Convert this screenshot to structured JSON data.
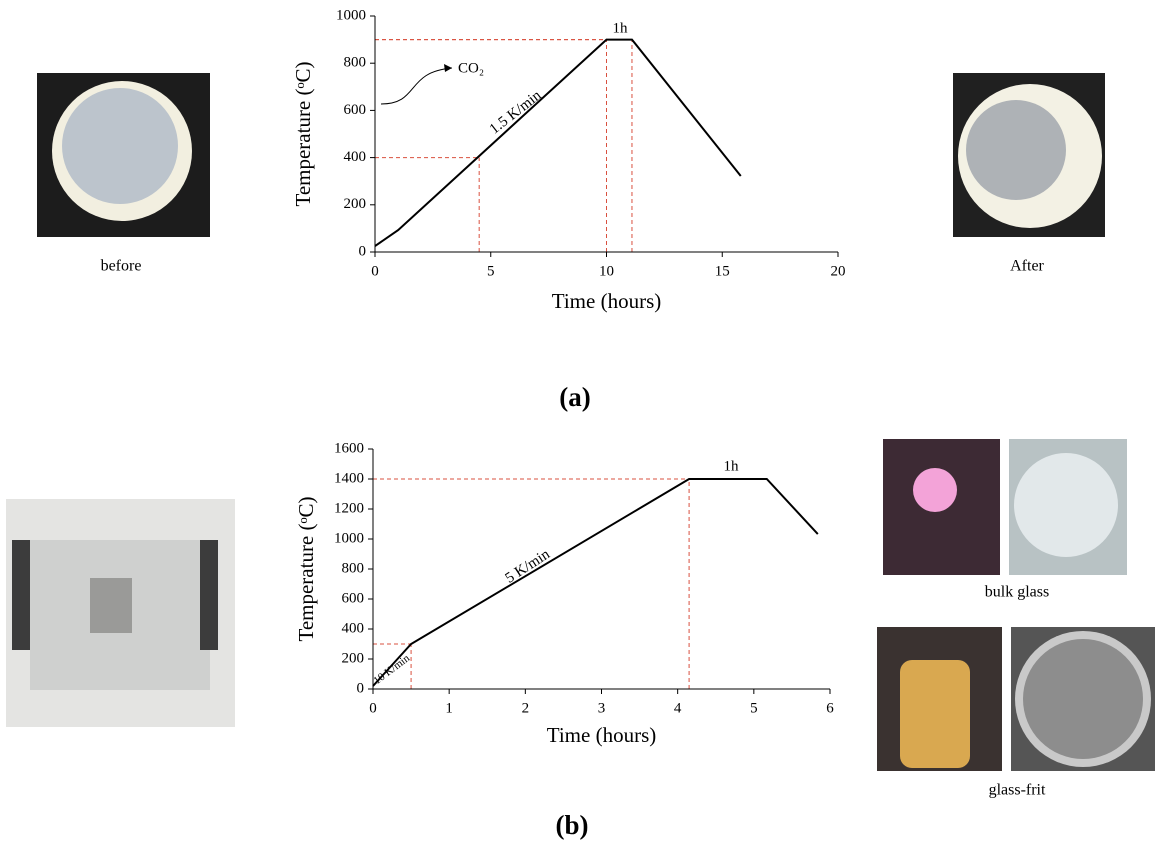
{
  "chart_data": [
    {
      "type": "line",
      "panel_label": "(a)",
      "xlabel": "Time (hours)",
      "ylabel": "Temperature (ᵒC)",
      "xlim": [
        0,
        20
      ],
      "xticks": [
        0,
        5,
        10,
        15,
        20
      ],
      "ylim": [
        0,
        1000
      ],
      "yticks": [
        0,
        200,
        400,
        600,
        800,
        1000
      ],
      "grid": false,
      "series": [
        {
          "color": "#000000",
          "x": [
            0,
            1,
            10,
            11.1,
            15.8
          ],
          "values": [
            25,
            93,
            900,
            900,
            322
          ]
        }
      ],
      "guides": {
        "color": "#d9503f",
        "x": [
          4.5,
          10,
          11.1
        ],
        "y": [
          400,
          900,
          900
        ]
      },
      "annotations": [
        "1h",
        "1.5 K/min",
        "CO₂"
      ],
      "captions": [
        "before",
        "After"
      ]
    },
    {
      "type": "line",
      "panel_label": "(b)",
      "xlabel": "Time (hours)",
      "ylabel": "Temperature (ᵒC)",
      "xlim": [
        0,
        6
      ],
      "xticks": [
        0,
        1,
        2,
        3,
        4,
        5,
        6
      ],
      "ylim": [
        0,
        1600
      ],
      "yticks": [
        0,
        200,
        400,
        600,
        800,
        1000,
        1200,
        1400,
        1600
      ],
      "grid": false,
      "series": [
        {
          "color": "#000000",
          "x": [
            0,
            0.5,
            4.15,
            5.17,
            5.84
          ],
          "values": [
            20,
            300,
            1400,
            1400,
            1033
          ]
        }
      ],
      "guides": {
        "color": "#d9503f",
        "x": [
          0.5,
          4.15
        ],
        "y": [
          300,
          1400
        ]
      },
      "annotations": [
        "1h",
        "5 K/min",
        "10 K/min"
      ],
      "captions": [
        "bulk glass",
        "glass-frit"
      ]
    }
  ]
}
